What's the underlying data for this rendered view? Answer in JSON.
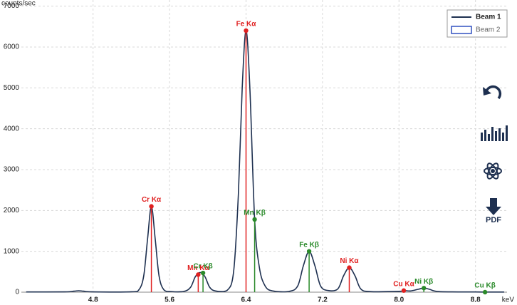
{
  "chart_data": {
    "type": "spectrum",
    "ylabel": "counts/sec",
    "xlabel": "keV",
    "xlim": [
      4.05,
      9.13
    ],
    "ylim": [
      0,
      7150
    ],
    "xticks": [
      4.8,
      5.6,
      6.4,
      7.2,
      {
        "value": 8,
        "label": "8.0"
      },
      8.8
    ],
    "yticks": [
      0,
      1000,
      2000,
      3000,
      4000,
      5000,
      6000,
      7000
    ],
    "grid": true,
    "legend": "top-right",
    "series": [
      {
        "name": "Beam 1",
        "color": "#1e3050",
        "x": [
          4.1,
          4.5,
          4.6,
          4.65,
          4.7,
          4.8,
          5.2,
          5.28,
          5.33,
          5.37,
          5.41,
          5.45,
          5.49,
          5.54,
          5.62,
          5.75,
          5.82,
          5.87,
          5.92,
          5.97,
          6.02,
          6.08,
          6.2,
          6.27,
          6.32,
          6.36,
          6.4,
          6.44,
          6.49,
          6.54,
          6.6,
          6.68,
          6.85,
          6.94,
          7.0,
          7.06,
          7.12,
          7.18,
          7.26,
          7.36,
          7.42,
          7.48,
          7.54,
          7.6,
          7.7,
          8.0,
          8.05,
          8.12,
          8.2,
          8.26,
          8.32,
          8.42,
          8.8,
          9.1
        ],
        "values": [
          5,
          8,
          25,
          35,
          25,
          8,
          10,
          60,
          400,
          1300,
          2100,
          1300,
          400,
          60,
          15,
          20,
          120,
          380,
          480,
          380,
          120,
          30,
          40,
          500,
          2400,
          5000,
          6400,
          5000,
          1780,
          600,
          150,
          30,
          20,
          150,
          650,
          1000,
          650,
          150,
          40,
          80,
          400,
          600,
          400,
          80,
          15,
          20,
          40,
          30,
          70,
          100,
          70,
          15,
          5,
          3
        ]
      },
      {
        "name": "Beam 2",
        "color": "#3050c0"
      }
    ],
    "peaks": [
      {
        "label": "Cr Kα",
        "x": 5.41,
        "y": 2100,
        "color": "#e02020"
      },
      {
        "label": "Mn Kα",
        "x": 5.9,
        "y": 430,
        "color": "#e02020"
      },
      {
        "label": "Cr Kβ",
        "x": 5.95,
        "y": 470,
        "color": "#2a8a2a"
      },
      {
        "label": "Fe Kα",
        "x": 6.4,
        "y": 6400,
        "color": "#e02020"
      },
      {
        "label": "Mn Kβ",
        "x": 6.49,
        "y": 1780,
        "color": "#2a8a2a"
      },
      {
        "label": "Fe Kβ",
        "x": 7.06,
        "y": 1000,
        "color": "#2a8a2a"
      },
      {
        "label": "Ni Kα",
        "x": 7.48,
        "y": 600,
        "color": "#e02020"
      },
      {
        "label": "Cu Kα",
        "x": 8.05,
        "y": 40,
        "color": "#e02020"
      },
      {
        "label": "Ni Kβ",
        "x": 8.26,
        "y": 100,
        "color": "#2a8a2a"
      },
      {
        "label": "Cu Kβ",
        "x": 8.9,
        "y": 0,
        "color": "#2a8a2a"
      }
    ]
  },
  "toolbar": {
    "pdf_label": "PDF"
  }
}
